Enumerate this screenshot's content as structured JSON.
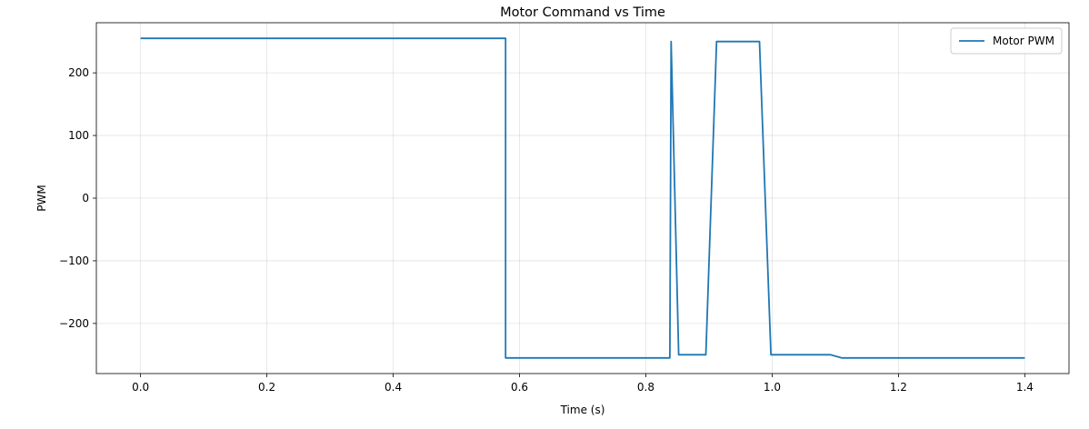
{
  "chart_data": {
    "type": "line",
    "title": "Motor Command vs Time",
    "xlabel": "Time (s)",
    "ylabel": "PWM",
    "xlim": [
      -0.07,
      1.47
    ],
    "ylim": [
      -280,
      280
    ],
    "x_ticks": [
      0.0,
      0.2,
      0.4,
      0.6,
      0.8,
      1.0,
      1.2,
      1.4
    ],
    "x_tick_labels": [
      "0.0",
      "0.2",
      "0.4",
      "0.6",
      "0.8",
      "1.0",
      "1.2",
      "1.4"
    ],
    "y_ticks": [
      -200,
      -100,
      0,
      100,
      200
    ],
    "y_tick_labels": [
      "−200",
      "−100",
      "0",
      "100",
      "200"
    ],
    "grid": true,
    "legend_position": "top-right",
    "colors": {
      "series": "#1f77b4"
    },
    "series": [
      {
        "name": "Motor PWM",
        "x": [
          0.0,
          0.578,
          0.578,
          0.838,
          0.84,
          0.852,
          0.895,
          0.912,
          0.98,
          0.998,
          1.092,
          1.11,
          1.4
        ],
        "y": [
          255,
          255,
          -255,
          -255,
          250,
          -250,
          -250,
          250,
          250,
          -250,
          -250,
          -255,
          -255
        ]
      }
    ]
  }
}
